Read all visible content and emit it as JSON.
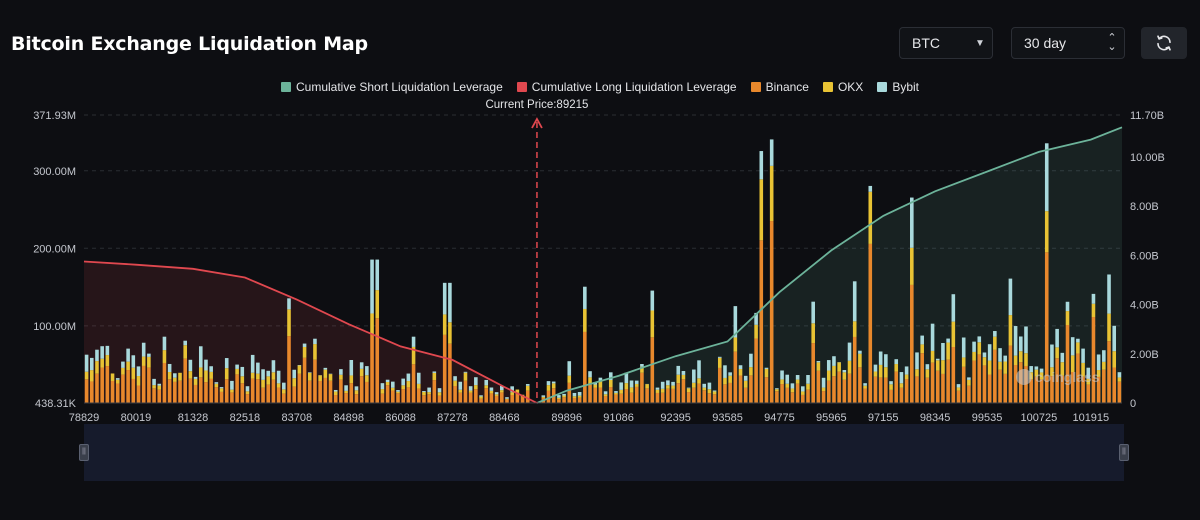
{
  "header": {
    "title": "Bitcoin Exchange Liquidation Map",
    "coin_value": "BTC",
    "range_value": "30 day",
    "refresh_icon": "refresh-icon"
  },
  "colors": {
    "short_cum": "#6cb39a",
    "long_cum": "#e0484f",
    "binance": "#e8882c",
    "okx": "#e8c334",
    "bybit": "#a9d9dc",
    "current_price_line": "#e0484f"
  },
  "watermark": "coinglass",
  "chart_data": {
    "type": "bar",
    "title": "",
    "current_price_label": "Current Price:89215",
    "current_price": 89215,
    "legend": [
      "Cumulative Short Liquidation Leverage",
      "Cumulative Long Liquidation Leverage",
      "Binance",
      "OKX",
      "Bybit"
    ],
    "y_left_ticks": [
      "371.93M",
      "300.00M",
      "200.00M",
      "100.00M",
      "438.31K"
    ],
    "y_left_range": [
      0.43831,
      371.93
    ],
    "y_right_ticks": [
      "11.70B",
      "10.00B",
      "8.00B",
      "6.00B",
      "4.00B",
      "2.00B",
      "0"
    ],
    "y_right_range": [
      0,
      11.7
    ],
    "x_ticks": [
      "78829",
      "80019",
      "81328",
      "82518",
      "83708",
      "84898",
      "86088",
      "87278",
      "88468",
      "89896",
      "91086",
      "92395",
      "93585",
      "94775",
      "95965",
      "97155",
      "98345",
      "99535",
      "100725",
      "101915"
    ],
    "x_range": [
      78829,
      102630
    ],
    "bar_count": 200,
    "bar_peaks": [
      {
        "price": 83580,
        "value": 135
      },
      {
        "price": 85490,
        "value": 185
      },
      {
        "price": 87160,
        "value": 155
      },
      {
        "price": 90320,
        "value": 150
      },
      {
        "price": 91810,
        "value": 145
      },
      {
        "price": 94400,
        "value": 325
      },
      {
        "price": 94650,
        "value": 340
      },
      {
        "price": 96910,
        "value": 280
      },
      {
        "price": 97760,
        "value": 265
      },
      {
        "price": 100880,
        "value": 335
      }
    ],
    "series": [
      {
        "name": "Cumulative Long Liquidation Leverage",
        "axis": "right",
        "unit": "B",
        "x": [
          78829,
          80019,
          81328,
          82518,
          83708,
          84898,
          86088,
          87278,
          88468,
          89215
        ],
        "values": [
          5.75,
          5.62,
          5.45,
          5.1,
          4.2,
          3.2,
          2.3,
          1.75,
          0.65,
          0.0
        ]
      },
      {
        "name": "Cumulative Short Liquidation Leverage",
        "axis": "right",
        "unit": "B",
        "x": [
          89215,
          89896,
          91086,
          92395,
          93585,
          94775,
          95965,
          97155,
          98345,
          99535,
          100725,
          101915,
          102630
        ],
        "values": [
          0.0,
          0.5,
          1.1,
          1.9,
          2.5,
          4.5,
          6.2,
          7.6,
          8.6,
          9.4,
          10.2,
          10.7,
          11.2
        ]
      }
    ]
  }
}
